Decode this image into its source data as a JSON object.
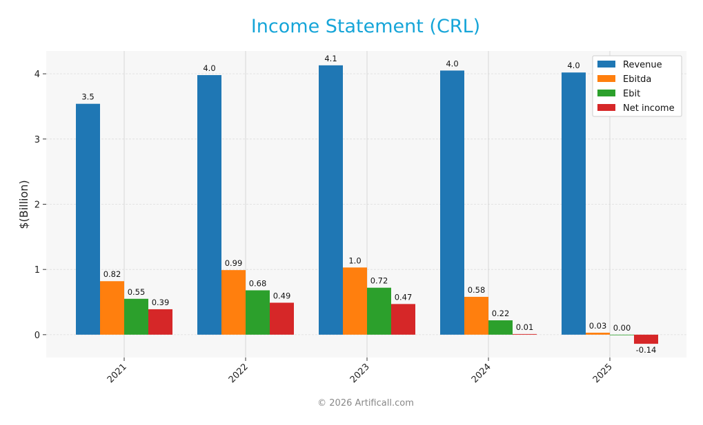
{
  "chart_data": {
    "type": "bar",
    "title": "Income Statement (CRL)",
    "xlabel": "",
    "ylabel": "$(Billion)",
    "categories": [
      "2021",
      "2022",
      "2023",
      "2024",
      "2025"
    ],
    "ylim": [
      -0.35,
      4.35
    ],
    "yticks": [
      0,
      1,
      2,
      3,
      4
    ],
    "grid": true,
    "legend_position": "top-right",
    "series": [
      {
        "name": "Revenue",
        "color": "#1f77b4",
        "values": [
          3.54,
          3.98,
          4.13,
          4.05,
          4.02
        ],
        "labels": [
          "3.5",
          "4.0",
          "4.1",
          "4.0",
          "4.0"
        ]
      },
      {
        "name": "Ebitda",
        "color": "#ff7f0e",
        "values": [
          0.82,
          0.99,
          1.03,
          0.58,
          0.03
        ],
        "labels": [
          "0.82",
          "0.99",
          "1.0",
          "0.58",
          "0.03"
        ]
      },
      {
        "name": "Ebit",
        "color": "#2ca02c",
        "values": [
          0.55,
          0.68,
          0.72,
          0.22,
          0.0
        ],
        "labels": [
          "0.55",
          "0.68",
          "0.72",
          "0.22",
          "0.00"
        ]
      },
      {
        "name": "Net income",
        "color": "#d62728",
        "values": [
          0.39,
          0.49,
          0.47,
          0.01,
          -0.14
        ],
        "labels": [
          "0.39",
          "0.49",
          "0.47",
          "0.01",
          "-0.14"
        ]
      }
    ]
  },
  "footer": "© 2026 Artificall.com"
}
